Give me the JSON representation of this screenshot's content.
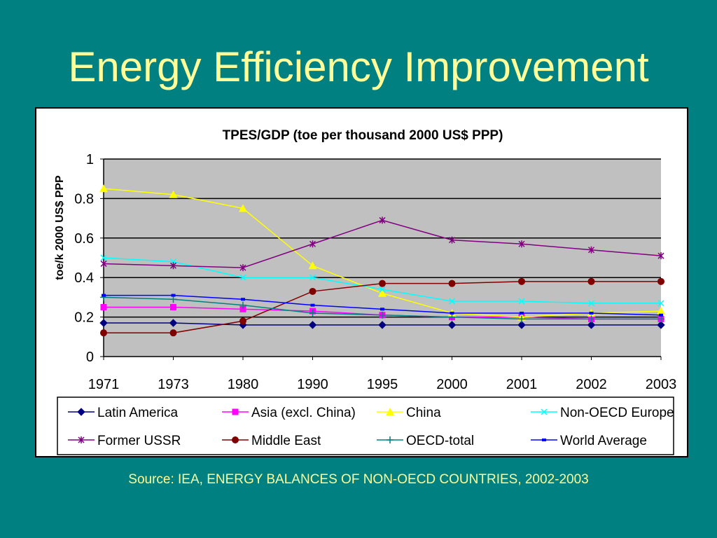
{
  "slide": {
    "title": "Energy Efficiency Improvement",
    "source": "Source: IEA, ENERGY BALANCES OF NON-OECD COUNTRIES, 2002-2003",
    "background_color": "#008080",
    "title_color": "#FFFF99"
  },
  "chart_data": {
    "type": "line",
    "title": "TPES/GDP (toe per thousand 2000 US$ PPP)",
    "xlabel": "",
    "ylabel": "toe/k 2000 US$ PPP",
    "categories": [
      "1971",
      "1973",
      "1980",
      "1990",
      "1995",
      "2000",
      "2001",
      "2002",
      "2003"
    ],
    "ylim": [
      0,
      1
    ],
    "yticks": [
      "0",
      "0.2",
      "0.4",
      "0.6",
      "0.8",
      "1"
    ],
    "grid": true,
    "plot_background": "#C0C0C0",
    "legend_position": "bottom",
    "series": [
      {
        "name": "Latin America",
        "color": "#000080",
        "marker": "diamond",
        "values": [
          0.17,
          0.17,
          0.16,
          0.16,
          0.16,
          0.16,
          0.16,
          0.16,
          0.16
        ]
      },
      {
        "name": "Asia (excl. China)",
        "color": "#FF00FF",
        "marker": "square",
        "values": [
          0.25,
          0.25,
          0.24,
          0.23,
          0.21,
          0.2,
          0.2,
          0.19,
          0.19
        ]
      },
      {
        "name": "China",
        "color": "#FFFF00",
        "marker": "triangle",
        "values": [
          0.85,
          0.82,
          0.75,
          0.46,
          0.32,
          0.22,
          0.2,
          0.22,
          0.23
        ]
      },
      {
        "name": "Non-OECD Europe",
        "color": "#00FFFF",
        "marker": "x",
        "values": [
          0.5,
          0.48,
          0.4,
          0.4,
          0.34,
          0.28,
          0.28,
          0.27,
          0.27
        ]
      },
      {
        "name": "Former USSR",
        "color": "#800080",
        "marker": "star",
        "values": [
          0.47,
          0.46,
          0.45,
          0.57,
          0.69,
          0.59,
          0.57,
          0.54,
          0.51
        ]
      },
      {
        "name": "Middle East",
        "color": "#800000",
        "marker": "circle",
        "values": [
          0.12,
          0.12,
          0.18,
          0.33,
          0.37,
          0.37,
          0.38,
          0.38,
          0.38
        ]
      },
      {
        "name": "OECD-total",
        "color": "#008080",
        "marker": "plus",
        "values": [
          0.3,
          0.29,
          0.26,
          0.22,
          0.21,
          0.2,
          0.19,
          0.19,
          0.19
        ]
      },
      {
        "name": "World Average",
        "color": "#0000FF",
        "marker": "dash",
        "values": [
          0.31,
          0.31,
          0.29,
          0.26,
          0.24,
          0.22,
          0.22,
          0.22,
          0.21
        ]
      }
    ]
  }
}
